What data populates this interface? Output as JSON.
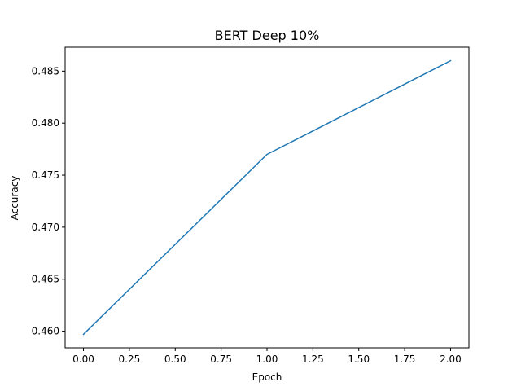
{
  "chart_data": {
    "type": "line",
    "title": "BERT Deep 10%",
    "xlabel": "Epoch",
    "ylabel": "Accuracy",
    "x": [
      0,
      1,
      2
    ],
    "series": [
      {
        "values": [
          0.4597,
          0.477,
          0.486
        ]
      }
    ],
    "xlim": [
      -0.1,
      2.1
    ],
    "ylim": [
      0.4584,
      0.4873
    ],
    "xticks": [
      0.0,
      0.25,
      0.5,
      0.75,
      1.0,
      1.25,
      1.5,
      1.75,
      2.0
    ],
    "xtick_labels": [
      "0.00",
      "0.25",
      "0.50",
      "0.75",
      "1.00",
      "1.25",
      "1.50",
      "1.75",
      "2.00"
    ],
    "yticks": [
      0.46,
      0.465,
      0.47,
      0.475,
      0.48,
      0.485
    ],
    "ytick_labels": [
      "0.460",
      "0.465",
      "0.470",
      "0.475",
      "0.480",
      "0.485"
    ],
    "grid": false,
    "line_color": "#1f77b4"
  }
}
